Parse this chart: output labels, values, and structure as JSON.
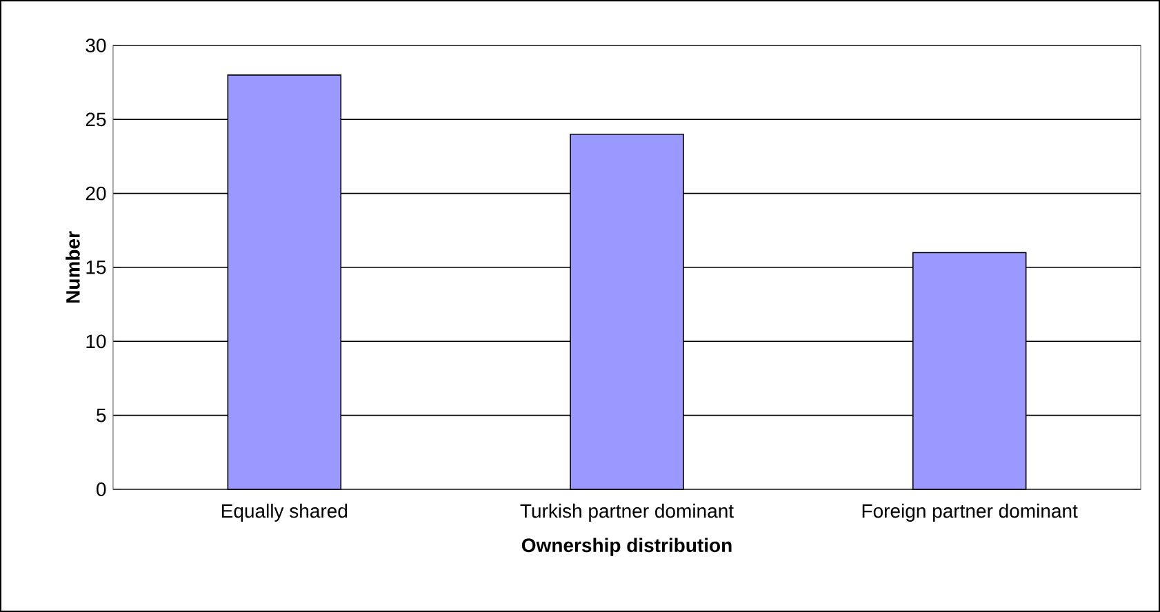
{
  "chart_data": {
    "type": "bar",
    "xlabel": "Ownership distribution",
    "ylabel": "Number",
    "categories": [
      "Equally shared",
      "Turkish partner dominant",
      "Foreign partner dominant"
    ],
    "values": [
      28,
      24,
      16
    ],
    "color": "#9999ff",
    "ylim": [
      0,
      30
    ],
    "yticks": [
      0,
      5,
      10,
      15,
      20,
      25,
      30
    ],
    "grid": "y"
  }
}
